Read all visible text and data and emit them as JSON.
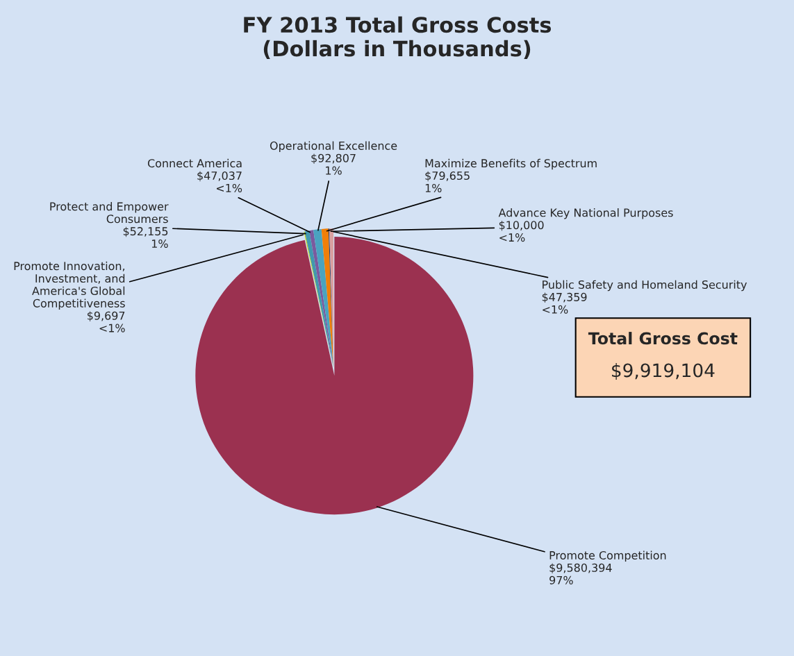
{
  "chart_data": {
    "type": "pie",
    "title": "FY 2013 Total Gross Costs\n(Dollars in Thousands)",
    "categories": [
      "Promote Competition",
      "Promote Innovation, Investment, and America's Global Competitiveness",
      "Protect and Empower Consumers",
      "Connect America",
      "Operational Excellence",
      "Maximize Benefits of Spectrum",
      "Advance Key National Purposes",
      "Public Safety and Homeland Security"
    ],
    "values": [
      9580394,
      9697,
      52155,
      47037,
      92807,
      79655,
      10000,
      47359
    ],
    "value_labels": [
      "$9,580,394\n97%",
      "$9,697\n<1%",
      "$52,155\n1%",
      "$47,037\n<1%",
      "$92,807\n1%",
      "$79,655\n1%",
      "$10,000\n<1%",
      "$47,359\n<1%"
    ],
    "colors": [
      "#9b3150",
      "#c4d600",
      "#4198af",
      "#7a5a9e",
      "#4aa3c0",
      "#f07f09",
      "#1f3a6e",
      "#d9a0a0"
    ],
    "annotations": [
      "Total Gross Cost",
      "$9,919,104"
    ],
    "legend": false
  }
}
